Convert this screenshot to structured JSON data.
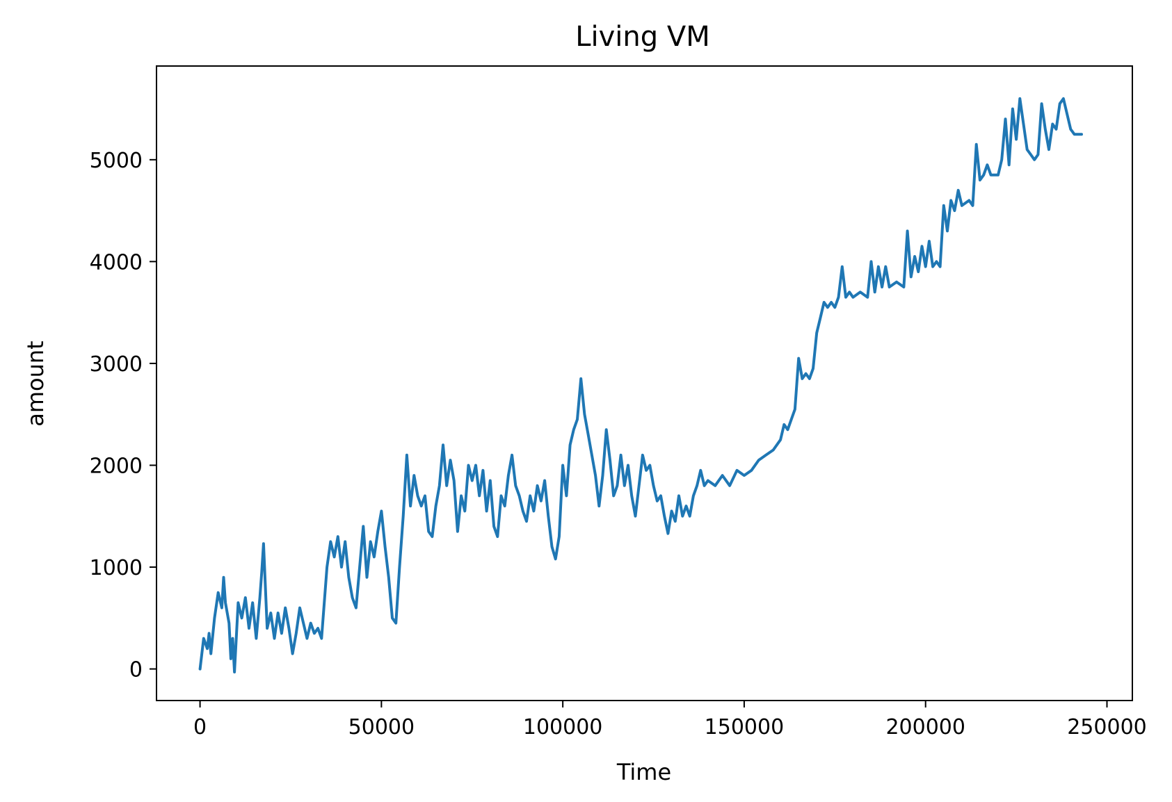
{
  "chart_data": {
    "type": "line",
    "title": "Living VM",
    "xlabel": "Time",
    "ylabel": "amount",
    "xlim": [
      -12000,
      257000
    ],
    "ylim": [
      -310,
      5920
    ],
    "xticks": [
      0,
      50000,
      100000,
      150000,
      200000,
      250000
    ],
    "xtick_labels": [
      "0",
      "50000",
      "100000",
      "150000",
      "200000",
      "250000"
    ],
    "yticks": [
      0,
      1000,
      2000,
      3000,
      4000,
      5000
    ],
    "ytick_labels": [
      "0",
      "1000",
      "2000",
      "3000",
      "4000",
      "5000"
    ],
    "grid": false,
    "series": [
      {
        "color": "#1f77b4",
        "points": [
          [
            0,
            0
          ],
          [
            1000,
            300
          ],
          [
            2000,
            200
          ],
          [
            2500,
            350
          ],
          [
            3000,
            150
          ],
          [
            4000,
            500
          ],
          [
            5000,
            750
          ],
          [
            6000,
            600
          ],
          [
            6500,
            900
          ],
          [
            7000,
            650
          ],
          [
            8000,
            450
          ],
          [
            8500,
            100
          ],
          [
            9000,
            300
          ],
          [
            9500,
            -30
          ],
          [
            10500,
            650
          ],
          [
            11500,
            500
          ],
          [
            12500,
            700
          ],
          [
            13500,
            400
          ],
          [
            14500,
            650
          ],
          [
            15500,
            300
          ],
          [
            16500,
            700
          ],
          [
            17000,
            950
          ],
          [
            17500,
            1230
          ],
          [
            18500,
            400
          ],
          [
            19500,
            550
          ],
          [
            20500,
            300
          ],
          [
            21500,
            550
          ],
          [
            22500,
            350
          ],
          [
            23500,
            600
          ],
          [
            24500,
            400
          ],
          [
            25500,
            150
          ],
          [
            26500,
            350
          ],
          [
            27500,
            600
          ],
          [
            28500,
            450
          ],
          [
            29500,
            300
          ],
          [
            30500,
            450
          ],
          [
            31500,
            350
          ],
          [
            32500,
            400
          ],
          [
            33500,
            300
          ],
          [
            35000,
            1000
          ],
          [
            36000,
            1250
          ],
          [
            37000,
            1100
          ],
          [
            38000,
            1300
          ],
          [
            39000,
            1000
          ],
          [
            40000,
            1250
          ],
          [
            41000,
            900
          ],
          [
            42000,
            700
          ],
          [
            43000,
            600
          ],
          [
            44000,
            1000
          ],
          [
            45000,
            1400
          ],
          [
            46000,
            900
          ],
          [
            47000,
            1250
          ],
          [
            48000,
            1100
          ],
          [
            49000,
            1350
          ],
          [
            50000,
            1550
          ],
          [
            51000,
            1200
          ],
          [
            52000,
            900
          ],
          [
            53000,
            500
          ],
          [
            54000,
            450
          ],
          [
            55000,
            1000
          ],
          [
            56000,
            1500
          ],
          [
            57000,
            2100
          ],
          [
            58000,
            1600
          ],
          [
            59000,
            1900
          ],
          [
            60000,
            1700
          ],
          [
            61000,
            1600
          ],
          [
            62000,
            1700
          ],
          [
            63000,
            1350
          ],
          [
            64000,
            1300
          ],
          [
            65000,
            1600
          ],
          [
            66000,
            1800
          ],
          [
            67000,
            2200
          ],
          [
            68000,
            1800
          ],
          [
            69000,
            2050
          ],
          [
            70000,
            1850
          ],
          [
            71000,
            1350
          ],
          [
            72000,
            1700
          ],
          [
            73000,
            1550
          ],
          [
            74000,
            2000
          ],
          [
            75000,
            1850
          ],
          [
            76000,
            2000
          ],
          [
            77000,
            1700
          ],
          [
            78000,
            1950
          ],
          [
            79000,
            1550
          ],
          [
            80000,
            1850
          ],
          [
            81000,
            1400
          ],
          [
            82000,
            1300
          ],
          [
            83000,
            1700
          ],
          [
            84000,
            1600
          ],
          [
            85000,
            1900
          ],
          [
            86000,
            2100
          ],
          [
            87000,
            1800
          ],
          [
            88000,
            1700
          ],
          [
            89000,
            1550
          ],
          [
            90000,
            1450
          ],
          [
            91000,
            1700
          ],
          [
            92000,
            1550
          ],
          [
            93000,
            1800
          ],
          [
            94000,
            1650
          ],
          [
            95000,
            1850
          ],
          [
            96000,
            1500
          ],
          [
            97000,
            1200
          ],
          [
            98000,
            1080
          ],
          [
            99000,
            1300
          ],
          [
            100000,
            2000
          ],
          [
            101000,
            1700
          ],
          [
            102000,
            2200
          ],
          [
            103000,
            2350
          ],
          [
            104000,
            2450
          ],
          [
            105000,
            2850
          ],
          [
            106000,
            2500
          ],
          [
            107000,
            2300
          ],
          [
            108000,
            2100
          ],
          [
            109000,
            1900
          ],
          [
            110000,
            1600
          ],
          [
            111000,
            1900
          ],
          [
            112000,
            2350
          ],
          [
            113000,
            2050
          ],
          [
            114000,
            1700
          ],
          [
            115000,
            1800
          ],
          [
            116000,
            2100
          ],
          [
            117000,
            1800
          ],
          [
            118000,
            2000
          ],
          [
            119000,
            1700
          ],
          [
            120000,
            1500
          ],
          [
            121000,
            1800
          ],
          [
            122000,
            2100
          ],
          [
            123000,
            1950
          ],
          [
            124000,
            2000
          ],
          [
            125000,
            1800
          ],
          [
            126000,
            1650
          ],
          [
            127000,
            1700
          ],
          [
            128000,
            1500
          ],
          [
            129000,
            1330
          ],
          [
            130000,
            1550
          ],
          [
            131000,
            1450
          ],
          [
            132000,
            1700
          ],
          [
            133000,
            1500
          ],
          [
            134000,
            1600
          ],
          [
            135000,
            1500
          ],
          [
            136000,
            1700
          ],
          [
            137000,
            1800
          ],
          [
            138000,
            1950
          ],
          [
            139000,
            1800
          ],
          [
            140000,
            1850
          ],
          [
            142000,
            1800
          ],
          [
            144000,
            1900
          ],
          [
            146000,
            1800
          ],
          [
            148000,
            1950
          ],
          [
            150000,
            1900
          ],
          [
            152000,
            1950
          ],
          [
            154000,
            2050
          ],
          [
            156000,
            2100
          ],
          [
            158000,
            2150
          ],
          [
            160000,
            2250
          ],
          [
            161000,
            2400
          ],
          [
            162000,
            2350
          ],
          [
            163000,
            2450
          ],
          [
            164000,
            2550
          ],
          [
            165000,
            3050
          ],
          [
            166000,
            2850
          ],
          [
            167000,
            2900
          ],
          [
            168000,
            2850
          ],
          [
            169000,
            2950
          ],
          [
            170000,
            3300
          ],
          [
            171000,
            3450
          ],
          [
            172000,
            3600
          ],
          [
            173000,
            3550
          ],
          [
            174000,
            3600
          ],
          [
            175000,
            3550
          ],
          [
            176000,
            3650
          ],
          [
            177000,
            3950
          ],
          [
            178000,
            3650
          ],
          [
            179000,
            3700
          ],
          [
            180000,
            3650
          ],
          [
            182000,
            3700
          ],
          [
            184000,
            3650
          ],
          [
            185000,
            4000
          ],
          [
            186000,
            3700
          ],
          [
            187000,
            3950
          ],
          [
            188000,
            3750
          ],
          [
            189000,
            3950
          ],
          [
            190000,
            3750
          ],
          [
            192000,
            3800
          ],
          [
            194000,
            3750
          ],
          [
            195000,
            4300
          ],
          [
            196000,
            3850
          ],
          [
            197000,
            4050
          ],
          [
            198000,
            3900
          ],
          [
            199000,
            4150
          ],
          [
            200000,
            3950
          ],
          [
            201000,
            4200
          ],
          [
            202000,
            3950
          ],
          [
            203000,
            4000
          ],
          [
            204000,
            3950
          ],
          [
            205000,
            4550
          ],
          [
            206000,
            4300
          ],
          [
            207000,
            4600
          ],
          [
            208000,
            4500
          ],
          [
            209000,
            4700
          ],
          [
            210000,
            4550
          ],
          [
            212000,
            4600
          ],
          [
            213000,
            4550
          ],
          [
            214000,
            5150
          ],
          [
            215000,
            4800
          ],
          [
            216000,
            4850
          ],
          [
            217000,
            4950
          ],
          [
            218000,
            4850
          ],
          [
            220000,
            4850
          ],
          [
            221000,
            5000
          ],
          [
            222000,
            5400
          ],
          [
            223000,
            4950
          ],
          [
            224000,
            5500
          ],
          [
            225000,
            5200
          ],
          [
            226000,
            5600
          ],
          [
            227000,
            5350
          ],
          [
            228000,
            5100
          ],
          [
            229000,
            5050
          ],
          [
            230000,
            5000
          ],
          [
            231000,
            5050
          ],
          [
            232000,
            5550
          ],
          [
            233000,
            5300
          ],
          [
            234000,
            5100
          ],
          [
            235000,
            5350
          ],
          [
            236000,
            5300
          ],
          [
            237000,
            5550
          ],
          [
            238000,
            5600
          ],
          [
            239000,
            5450
          ],
          [
            240000,
            5300
          ],
          [
            241000,
            5250
          ],
          [
            242000,
            5250
          ],
          [
            243000,
            5250
          ]
        ]
      }
    ]
  }
}
